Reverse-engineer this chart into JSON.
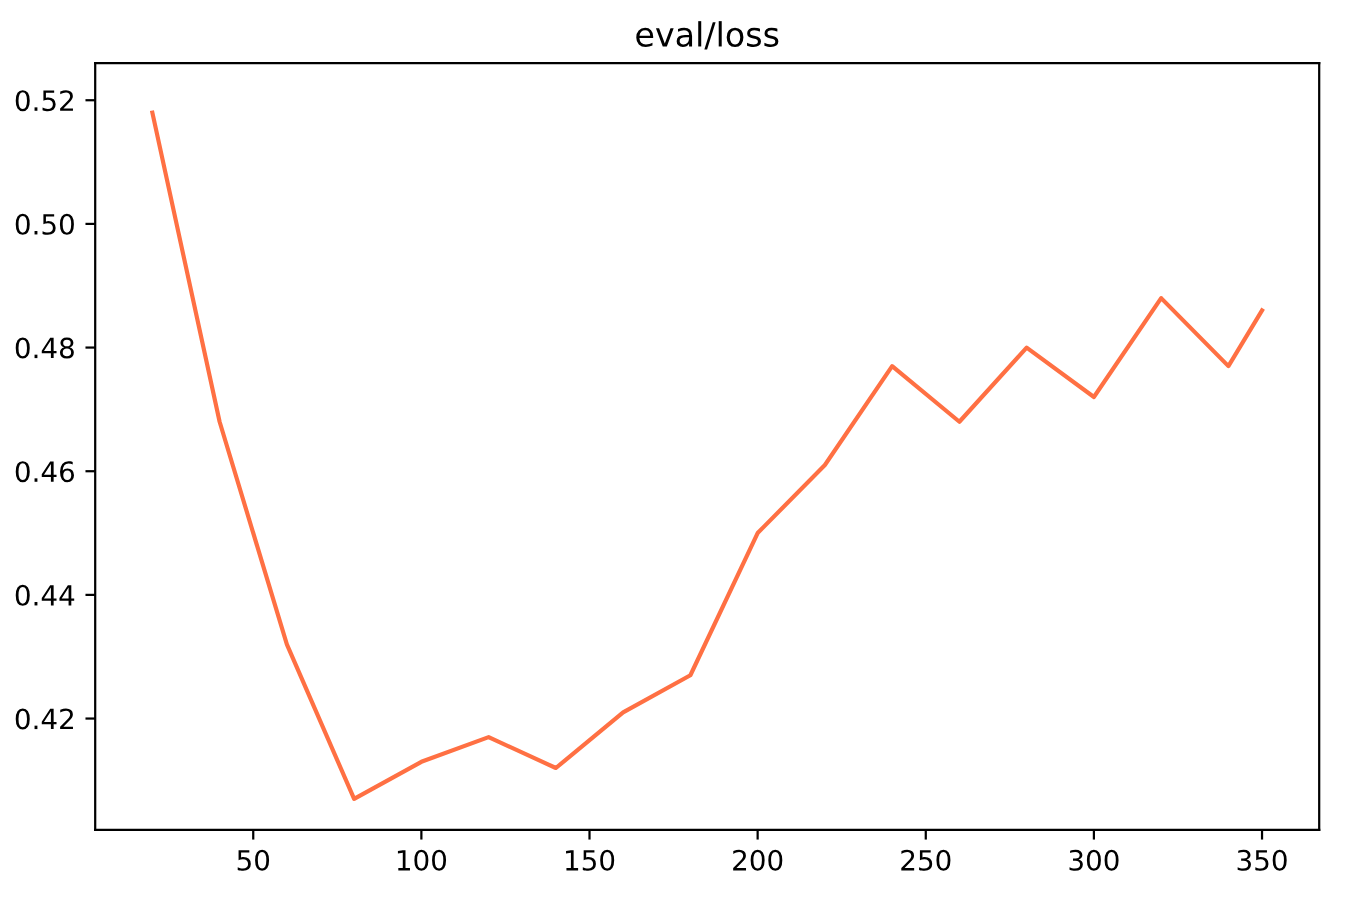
{
  "chart_data": {
    "type": "line",
    "title": "eval/loss",
    "x": [
      20,
      40,
      60,
      80,
      100,
      120,
      140,
      160,
      180,
      200,
      220,
      240,
      260,
      280,
      300,
      320,
      340,
      350
    ],
    "series": [
      {
        "color": "#ff7043",
        "values": [
          0.518,
          0.468,
          0.432,
          0.407,
          0.413,
          0.417,
          0.412,
          0.421,
          0.427,
          0.45,
          0.461,
          0.477,
          0.468,
          0.48,
          0.472,
          0.488,
          0.477,
          0.486
        ]
      }
    ],
    "xlim": [
      3,
      367
    ],
    "ylim": [
      0.402,
      0.526
    ],
    "xticks": [
      50,
      100,
      150,
      200,
      250,
      300,
      350
    ],
    "yticks": [
      {
        "value": 0.42,
        "label": "0.42"
      },
      {
        "value": 0.44,
        "label": "0.44"
      },
      {
        "value": 0.46,
        "label": "0.46"
      },
      {
        "value": 0.48,
        "label": "0.48"
      },
      {
        "value": 0.5,
        "label": "0.50"
      },
      {
        "value": 0.52,
        "label": "0.52"
      }
    ],
    "grid": false
  }
}
